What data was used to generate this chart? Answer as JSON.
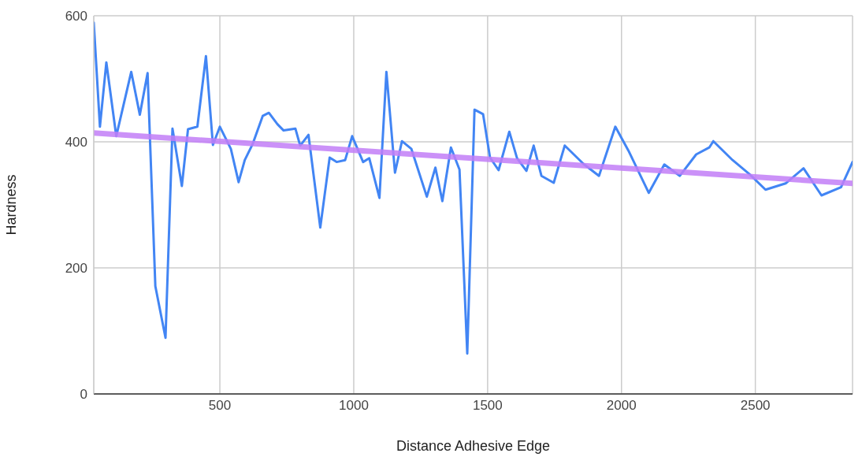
{
  "chart_data": {
    "type": "line",
    "xlabel": "Distance Adhesive Edge",
    "ylabel": "Hardness",
    "xlim": [
      29,
      2863
    ],
    "xticks": [
      500,
      1000,
      1500,
      2000,
      2500
    ],
    "ylim": [
      0,
      600
    ],
    "yticks": [
      0,
      200,
      400,
      600
    ],
    "grid": true,
    "marker": "none",
    "line_style": "solid",
    "series": [
      {
        "color": "#4285f4",
        "x": [
          29,
          52,
          76,
          113,
          169,
          201,
          230,
          259,
          297,
          323,
          358,
          381,
          416,
          448,
          474,
          500,
          541,
          570,
          593,
          622,
          660,
          683,
          715,
          738,
          782,
          800,
          831,
          875,
          910,
          936,
          968,
          994,
          1035,
          1058,
          1096,
          1122,
          1154,
          1180,
          1215,
          1273,
          1305,
          1331,
          1363,
          1395,
          1424,
          1451,
          1483,
          1509,
          1541,
          1581,
          1610,
          1645,
          1672,
          1701,
          1747,
          1788,
          1858,
          1916,
          1977,
          2026,
          2102,
          2160,
          2218,
          2279,
          2328,
          2343,
          2415,
          2480,
          2538,
          2613,
          2680,
          2747,
          2820,
          2863
        ],
        "values": [
          589,
          424,
          526,
          409,
          511,
          443,
          509,
          171,
          89,
          421,
          330,
          420,
          424,
          536,
          395,
          424,
          389,
          336,
          371,
          396,
          441,
          446,
          428,
          418,
          421,
          394,
          411,
          264,
          375,
          368,
          371,
          409,
          368,
          374,
          311,
          511,
          351,
          401,
          389,
          313,
          359,
          306,
          391,
          356,
          64,
          451,
          444,
          375,
          355,
          416,
          374,
          354,
          394,
          346,
          335,
          394,
          365,
          346,
          424,
          386,
          319,
          364,
          346,
          380,
          391,
          401,
          371,
          348,
          324,
          334,
          358,
          315,
          328,
          368
        ]
      },
      {
        "color": "#c27ef7",
        "x": [
          29,
          2863
        ],
        "values": [
          414,
          334
        ]
      }
    ]
  }
}
